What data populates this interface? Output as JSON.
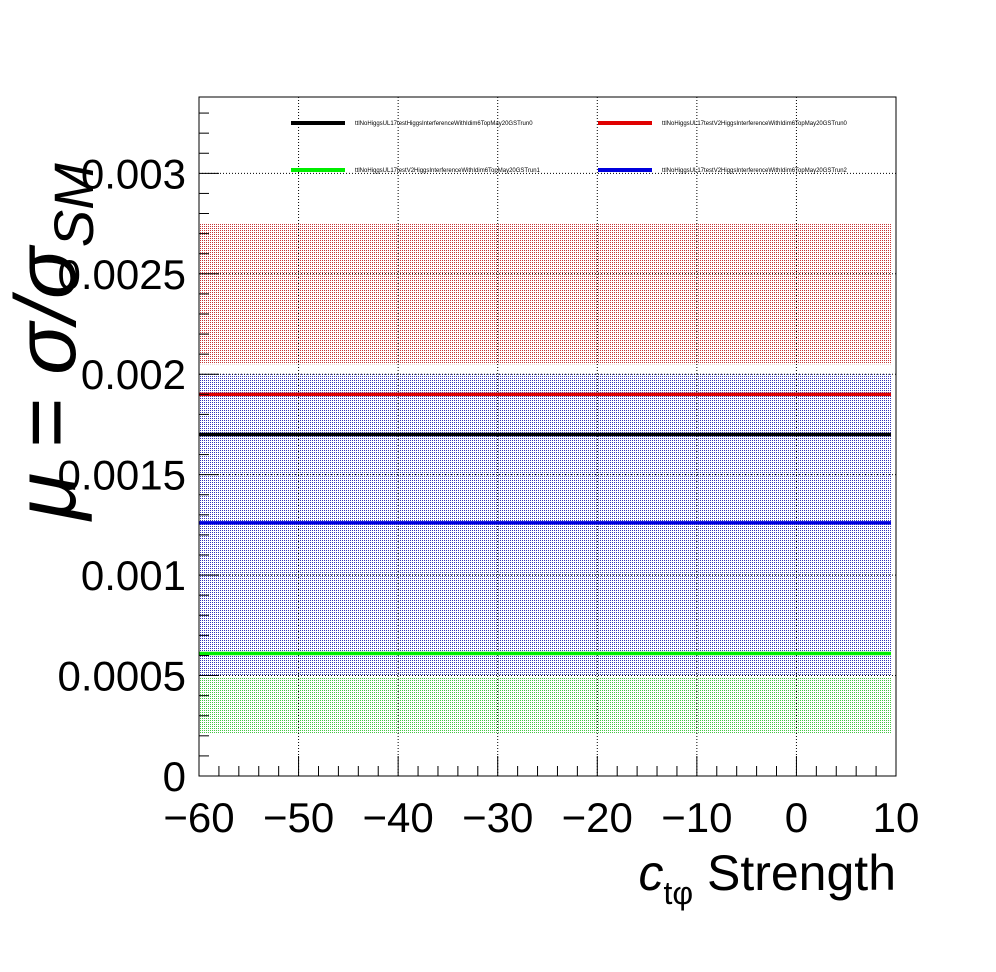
{
  "chart_data": {
    "type": "line",
    "xlabel": {
      "main": "c",
      "sub": "tφ",
      "rest": " Strength"
    },
    "ylabel": "μ = σ/σ",
    "ylabel_sub": "SM",
    "xlim": [
      -60,
      10
    ],
    "ylim": [
      0,
      0.00338
    ],
    "x_ticks": [
      {
        "value": -60,
        "label": "−60"
      },
      {
        "value": -50,
        "label": "−50"
      },
      {
        "value": -40,
        "label": "−40"
      },
      {
        "value": -30,
        "label": "−30"
      },
      {
        "value": -20,
        "label": "−20"
      },
      {
        "value": -10,
        "label": "−10"
      },
      {
        "value": 0,
        "label": "0"
      },
      {
        "value": 10,
        "label": "10"
      }
    ],
    "y_ticks": [
      {
        "value": 0,
        "label": "0"
      },
      {
        "value": 0.0005,
        "label": "0.0005"
      },
      {
        "value": 0.001,
        "label": "0.001"
      },
      {
        "value": 0.0015,
        "label": "0.0015"
      },
      {
        "value": 0.002,
        "label": "0.002"
      },
      {
        "value": 0.0025,
        "label": "0.0025"
      },
      {
        "value": 0.003,
        "label": "0.003"
      }
    ],
    "grid": true,
    "legend_position": "top",
    "series": [
      {
        "name": "ttlNoHiggsUL17testHiggsInterferenceWithIdim6TopMay20GSTrun0",
        "color": "#000000",
        "x": [
          -60,
          9.5
        ],
        "y": [
          0.0017,
          0.0017
        ],
        "band": null
      },
      {
        "name": "ttlNoHiggsUL17testV2HiggsInterferenceWithIdim6TopMay20GSTrun0",
        "color": "#e00000",
        "x": [
          -60,
          9.5
        ],
        "y": [
          0.0019,
          0.0019
        ],
        "band": [
          0.00205,
          0.00275
        ]
      },
      {
        "name": "ttlNoHiggsUL17testV2HiggsInterferenceWithIdim6TopMay20GSTrun1",
        "color": "#00ee00",
        "x": [
          -60,
          9.5
        ],
        "y": [
          0.00061,
          0.00061
        ],
        "band": [
          0.00021,
          0.00049
        ]
      },
      {
        "name": "ttlNoHiggsUL17testV2HiggsInterferenceWithIdim6TopMay20GSTrun2",
        "color": "#0000dd",
        "x": [
          -60,
          9.5
        ],
        "y": [
          0.00126,
          0.00126
        ],
        "band": [
          0.0005,
          0.002
        ]
      }
    ]
  }
}
